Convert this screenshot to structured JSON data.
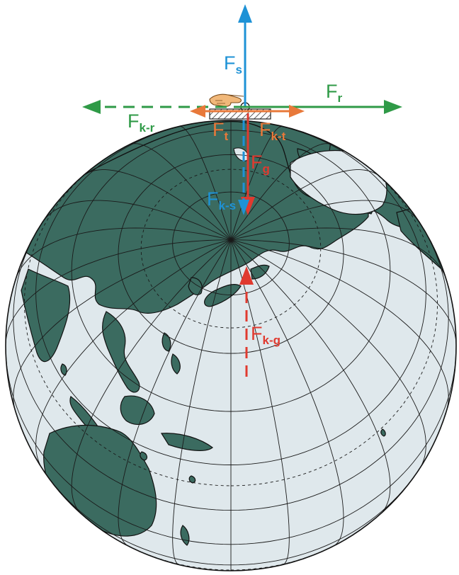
{
  "colors": {
    "ocean": "#dfe8ec",
    "land": "#3b6b60",
    "grid": "#1a1a1a",
    "outline": "#111111",
    "gravity": "#e03a2f",
    "centrifugal": "#1e92d6",
    "rotation": "#2f9a47",
    "friction": "#e8793a"
  },
  "icons": {
    "hand": "pointing-hand-icon"
  },
  "forces": {
    "f_s": {
      "main": "F",
      "sub": "s"
    },
    "f_r": {
      "main": "F",
      "sub": "r"
    },
    "f_kr": {
      "main": "F",
      "sub": "k-r"
    },
    "f_t": {
      "main": "F",
      "sub": "t"
    },
    "f_kt": {
      "main": "F",
      "sub": "k-t"
    },
    "f_g": {
      "main": "F",
      "sub": "g"
    },
    "f_ks": {
      "main": "F",
      "sub": "k-s"
    },
    "f_kg": {
      "main": "F",
      "sub": "k-g"
    }
  }
}
